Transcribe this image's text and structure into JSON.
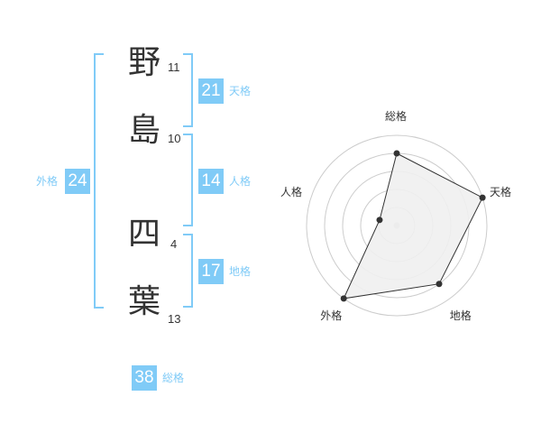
{
  "name": {
    "chars": [
      {
        "char": "野",
        "strokes": "11"
      },
      {
        "char": "島",
        "strokes": "10"
      },
      {
        "char": "四",
        "strokes": "4"
      },
      {
        "char": "葉",
        "strokes": "13"
      }
    ]
  },
  "kaku": {
    "tenkaku": {
      "value": "21",
      "label": "天格"
    },
    "jinkaku": {
      "value": "14",
      "label": "人格"
    },
    "chikaku": {
      "value": "17",
      "label": "地格"
    },
    "gaikaku": {
      "value": "24",
      "label": "外格"
    },
    "soukaku": {
      "value": "38",
      "label": "総格"
    }
  },
  "colors": {
    "accent": "#80cbf7",
    "polygon_fill": "#f0f0f0",
    "ring": "#cccccc"
  },
  "chart_data": {
    "type": "radar",
    "axes": [
      "総格",
      "天格",
      "地格",
      "外格",
      "人格"
    ],
    "values": [
      4,
      5,
      4,
      5,
      1
    ],
    "range": [
      0,
      5
    ],
    "rings": 5
  }
}
